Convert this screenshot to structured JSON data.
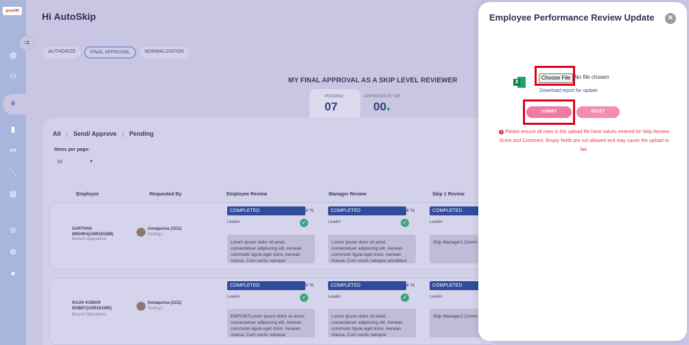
{
  "rail": {
    "logo_text": "greytHR"
  },
  "main": {
    "greeting": "Hi AutoSkip",
    "tabs": [
      {
        "label": "AUTHORIZE",
        "active": false
      },
      {
        "label": "FINAL APPROVAL",
        "active": true
      },
      {
        "label": "NORMALIZATION",
        "active": false
      }
    ],
    "section_title": "MY FINAL APPROVAL AS A SKIP LEVEL REVIEWER",
    "stats": {
      "pending_label": "PENDING",
      "pending_value": "07",
      "approved_label": "APPROVED BY ME",
      "approved_value": "00"
    },
    "filters": [
      "All",
      "Send/ Approve",
      "Pending"
    ],
    "items_per_page_label": "Items per page:",
    "items_per_page_value": "10",
    "columns": [
      "Employee",
      "Requested By",
      "Employee Review",
      "Manager Review",
      "Skip 1 Review"
    ],
    "rows": [
      {
        "employee_name": "SARTHAK MISHRA(USR101589)",
        "employee_dept": "Branch Operations",
        "requester_name": "Annapurna (1111)",
        "requester_dept": "Testing |",
        "emp_status": "COMPLETED",
        "emp_pct": "4 %",
        "emp_role": "Leader",
        "emp_comment": "Lorem ipsum dolor sit amet, consectetuer adipiscing elit. Aenean commodo ligula eget dolor. Aenean massa. Cum sociis natoque",
        "mgr_status": "COMPLETED",
        "mgr_pct": "4 %",
        "mgr_role": "Leader",
        "mgr_comment": "Lorem ipsum dolor sit amet, consectetuer adipiscing elit. Aenean commodo ligula eget dolor. Aenean massa. Cum sociis natoque penatibus",
        "skip_status": "COMPLETED",
        "skip_role": "Leader",
        "skip_comment": "Skip Manager1 Comm"
      },
      {
        "employee_name": "RAJIV KUMAR DUBEY(USR101590)",
        "employee_dept": "Branch Operations",
        "requester_name": "Annapurna (1111)",
        "requester_dept": "Testing |",
        "emp_status": "COMPLETED",
        "emp_pct": "4 %",
        "emp_role": "Leader",
        "emp_comment": "EMPCMTLorem ipsum dolor sit amet, consectetuer adipiscing elit. Aenean commodo ligula eget dolor. Aenean massa. Cum sociis natoque",
        "mgr_status": "COMPLETED",
        "mgr_pct": "4 %",
        "mgr_role": "Leader",
        "mgr_comment": "Lorem ipsum dolor sit amet, consectetuer adipiscing elit. Aenean commodo ligula eget dolor. Aenean massa. Cum sociis natoque",
        "skip_status": "COMPLETED",
        "skip_role": "Leader",
        "skip_comment": "Skip Manager1 Comm"
      }
    ]
  },
  "modal": {
    "title": "Employee Performance Review Update",
    "close_icon": "close-icon",
    "file_icon": "excel-icon",
    "choose_file_label": "Choose File",
    "no_file_text": "No file chosen",
    "download_link": "Download report for update",
    "submit_label": "SUBMIT",
    "reset_label": "RESET",
    "warning": "Please ensure all rows in the upload file have values entered for Skip Review Score and Comment. Empty fields are not allowed and may cause the upload to fail.",
    "highlight_color": "#e0001b"
  }
}
